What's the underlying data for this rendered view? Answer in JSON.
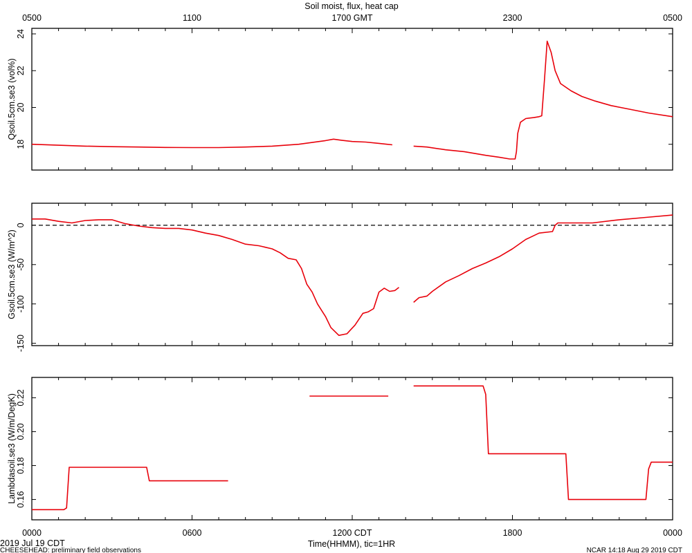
{
  "top_title": "Soil moist, flux, heat cap",
  "top_axis_ticks": [
    "0500",
    "1100",
    "1700 GMT",
    "2300",
    "0500"
  ],
  "bottom_axis_ticks": [
    "0000",
    "0600",
    "1200 CDT",
    "1800",
    "0000"
  ],
  "xlabel": "Time(HHMM), tic=1HR",
  "date_label": "2019 Jul 19 CDT",
  "footer_left": "CHEESEHEAD: preliminary field observations",
  "footer_right": "NCAR 14:18 Aug 29 2019 CDT",
  "colors": {
    "series": "#e8000a",
    "axes": "#000000",
    "zero_line": "#000000"
  },
  "chart_data": [
    {
      "type": "line",
      "panel": "top",
      "ylabel": "Qsoil.5cm.se3 (vol%)",
      "xlim": [
        0,
        24
      ],
      "ylim": [
        16.6,
        24.3
      ],
      "yticks": [
        18,
        20,
        22,
        24
      ],
      "grid": false,
      "series": [
        {
          "segments": [
            [
              [
                0,
                18.0
              ],
              [
                1,
                17.95
              ],
              [
                2,
                17.9
              ],
              [
                3,
                17.87
              ],
              [
                4,
                17.85
              ],
              [
                5,
                17.83
              ],
              [
                6,
                17.82
              ],
              [
                7,
                17.82
              ],
              [
                8,
                17.85
              ],
              [
                9,
                17.9
              ],
              [
                10,
                18.0
              ],
              [
                10.5,
                18.1
              ],
              [
                11,
                18.2
              ],
              [
                11.3,
                18.28
              ],
              [
                11.6,
                18.22
              ],
              [
                12,
                18.15
              ],
              [
                12.5,
                18.12
              ],
              [
                13,
                18.05
              ],
              [
                13.3,
                18.0
              ],
              [
                13.5,
                17.97
              ]
            ],
            [
              [
                14.3,
                17.9
              ],
              [
                14.8,
                17.85
              ],
              [
                15.5,
                17.7
              ],
              [
                16.2,
                17.6
              ],
              [
                17,
                17.4
              ],
              [
                17.5,
                17.3
              ],
              [
                17.9,
                17.2
              ],
              [
                18.1,
                17.2
              ],
              [
                18.15,
                17.6
              ],
              [
                18.2,
                18.6
              ],
              [
                18.3,
                19.2
              ],
              [
                18.5,
                19.4
              ],
              [
                18.8,
                19.45
              ],
              [
                19.0,
                19.5
              ],
              [
                19.1,
                19.55
              ],
              [
                19.2,
                21.5
              ],
              [
                19.3,
                23.6
              ],
              [
                19.45,
                23.0
              ],
              [
                19.6,
                22.0
              ],
              [
                19.8,
                21.3
              ],
              [
                20.2,
                20.9
              ],
              [
                20.6,
                20.6
              ],
              [
                21.1,
                20.35
              ],
              [
                21.7,
                20.1
              ],
              [
                22.4,
                19.9
              ],
              [
                23.1,
                19.7
              ],
              [
                24,
                19.5
              ]
            ]
          ]
        }
      ]
    },
    {
      "type": "line",
      "panel": "middle",
      "ylabel": "Gsoil.5cm.se3 (W/m^2)",
      "xlim": [
        0,
        24
      ],
      "ylim": [
        -153,
        28
      ],
      "yticks": [
        -150,
        -100,
        -50,
        0
      ],
      "zero_line": true,
      "grid": false,
      "series": [
        {
          "segments": [
            [
              [
                0,
                8
              ],
              [
                0.5,
                8
              ],
              [
                1,
                5
              ],
              [
                1.5,
                3
              ],
              [
                2,
                6
              ],
              [
                2.5,
                7
              ],
              [
                3,
                7
              ],
              [
                3.5,
                2
              ],
              [
                4,
                -1
              ],
              [
                4.5,
                -3
              ],
              [
                5,
                -4
              ],
              [
                5.5,
                -4
              ],
              [
                6,
                -6
              ],
              [
                6.5,
                -10
              ],
              [
                7,
                -13
              ],
              [
                7.5,
                -18
              ],
              [
                8,
                -24
              ],
              [
                8.5,
                -26
              ],
              [
                9,
                -30
              ],
              [
                9.3,
                -35
              ],
              [
                9.6,
                -42
              ],
              [
                9.9,
                -44
              ],
              [
                10.1,
                -55
              ],
              [
                10.3,
                -75
              ],
              [
                10.5,
                -85
              ],
              [
                10.7,
                -100
              ],
              [
                11,
                -116
              ],
              [
                11.2,
                -130
              ],
              [
                11.5,
                -140
              ],
              [
                11.8,
                -138
              ],
              [
                12.1,
                -127
              ],
              [
                12.4,
                -112
              ],
              [
                12.6,
                -110
              ],
              [
                12.8,
                -106
              ],
              [
                13,
                -85
              ],
              [
                13.2,
                -80
              ],
              [
                13.4,
                -84
              ],
              [
                13.6,
                -83
              ],
              [
                13.75,
                -79
              ]
            ],
            [
              [
                14.3,
                -98
              ],
              [
                14.5,
                -92
              ],
              [
                14.8,
                -90
              ],
              [
                15,
                -84
              ],
              [
                15.5,
                -72
              ],
              [
                16,
                -64
              ],
              [
                16.5,
                -55
              ],
              [
                17,
                -48
              ],
              [
                17.5,
                -40
              ],
              [
                18,
                -30
              ],
              [
                18.5,
                -18
              ],
              [
                19,
                -10
              ],
              [
                19.5,
                -8
              ],
              [
                19.6,
                0
              ],
              [
                19.7,
                3
              ],
              [
                20,
                3
              ],
              [
                21,
                3
              ],
              [
                22,
                7
              ],
              [
                23,
                10
              ],
              [
                24,
                13
              ]
            ]
          ]
        }
      ]
    },
    {
      "type": "line",
      "panel": "bottom",
      "ylabel": "Lambdasoil.se3 (W/m/DegK)",
      "xlim": [
        0,
        24
      ],
      "ylim": [
        0.148,
        0.232
      ],
      "yticks": [
        0.16,
        0.18,
        0.2,
        0.22
      ],
      "grid": false,
      "series": [
        {
          "segments": [
            [
              [
                0,
                0.154
              ],
              [
                1.2,
                0.154
              ],
              [
                1.3,
                0.155
              ],
              [
                1.4,
                0.179
              ],
              [
                4.3,
                0.179
              ],
              [
                4.4,
                0.171
              ],
              [
                7.35,
                0.171
              ]
            ],
            [
              [
                10.4,
                0.221
              ],
              [
                13.35,
                0.221
              ]
            ],
            [
              [
                14.3,
                0.227
              ],
              [
                16.9,
                0.227
              ],
              [
                17.0,
                0.222
              ],
              [
                17.1,
                0.187
              ],
              [
                20.0,
                0.187
              ],
              [
                20.1,
                0.16
              ],
              [
                23.0,
                0.16
              ],
              [
                23.1,
                0.178
              ],
              [
                23.2,
                0.182
              ],
              [
                24,
                0.182
              ]
            ]
          ]
        }
      ]
    }
  ]
}
